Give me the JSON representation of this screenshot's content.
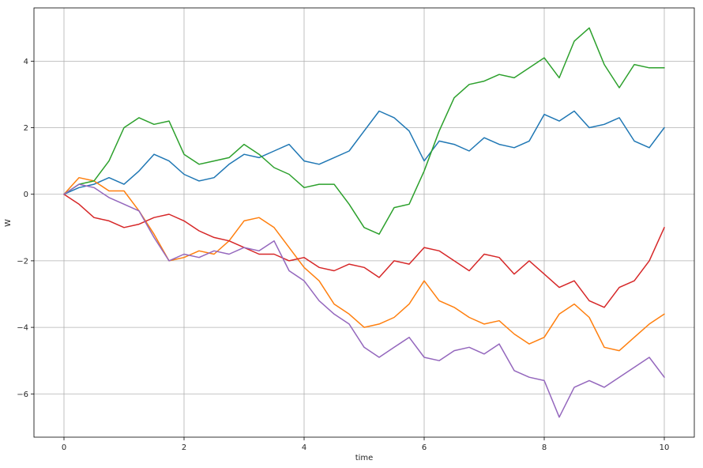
{
  "chart_data": {
    "type": "line",
    "title": "",
    "xlabel": "time",
    "ylabel": "W",
    "xlim": [
      -0.5,
      10.5
    ],
    "ylim": [
      -7.3,
      5.6
    ],
    "xticks": [
      0,
      2,
      4,
      6,
      8,
      10
    ],
    "yticks": [
      -6,
      -4,
      -2,
      0,
      2,
      4
    ],
    "grid": true,
    "series": [
      {
        "color": "#1f77b4",
        "x": [
          0,
          0.25,
          0.5,
          0.75,
          1.0,
          1.25,
          1.5,
          1.75,
          2.0,
          2.25,
          2.5,
          2.75,
          3.0,
          3.25,
          3.5,
          3.75,
          4.0,
          4.25,
          4.5,
          4.75,
          5.0,
          5.25,
          5.5,
          5.75,
          6.0,
          6.25,
          6.5,
          6.75,
          7.0,
          7.25,
          7.5,
          7.75,
          8.0,
          8.25,
          8.5,
          8.75,
          9.0,
          9.25,
          9.5,
          9.75,
          10.0
        ],
        "y": [
          0.0,
          0.2,
          0.3,
          0.5,
          0.3,
          0.7,
          1.2,
          1.0,
          0.6,
          0.4,
          0.5,
          0.9,
          1.2,
          1.1,
          1.3,
          1.5,
          1.0,
          0.9,
          1.1,
          1.3,
          1.9,
          2.5,
          2.3,
          1.9,
          1.0,
          1.6,
          1.5,
          1.3,
          1.7,
          1.5,
          1.4,
          1.6,
          2.4,
          2.2,
          2.5,
          2.0,
          2.1,
          2.3,
          1.6,
          1.4,
          2.0
        ]
      },
      {
        "color": "#ff7f0e",
        "x": [
          0,
          0.25,
          0.5,
          0.75,
          1.0,
          1.25,
          1.5,
          1.75,
          2.0,
          2.25,
          2.5,
          2.75,
          3.0,
          3.25,
          3.5,
          3.75,
          4.0,
          4.25,
          4.5,
          4.75,
          5.0,
          5.25,
          5.5,
          5.75,
          6.0,
          6.25,
          6.5,
          6.75,
          7.0,
          7.25,
          7.5,
          7.75,
          8.0,
          8.25,
          8.5,
          8.75,
          9.0,
          9.25,
          9.5,
          9.75,
          10.0
        ],
        "y": [
          0.0,
          0.5,
          0.4,
          0.1,
          0.1,
          -0.5,
          -1.2,
          -2.0,
          -1.9,
          -1.7,
          -1.8,
          -1.4,
          -0.8,
          -0.7,
          -1.0,
          -1.6,
          -2.2,
          -2.6,
          -3.3,
          -3.6,
          -4.0,
          -3.9,
          -3.7,
          -3.3,
          -2.6,
          -3.2,
          -3.4,
          -3.7,
          -3.9,
          -3.8,
          -4.2,
          -4.5,
          -4.3,
          -3.6,
          -3.3,
          -3.7,
          -4.6,
          -4.7,
          -4.3,
          -3.9,
          -3.6
        ]
      },
      {
        "color": "#2ca02c",
        "x": [
          0,
          0.25,
          0.5,
          0.75,
          1.0,
          1.25,
          1.5,
          1.75,
          2.0,
          2.25,
          2.5,
          2.75,
          3.0,
          3.25,
          3.5,
          3.75,
          4.0,
          4.25,
          4.5,
          4.75,
          5.0,
          5.25,
          5.5,
          5.75,
          6.0,
          6.25,
          6.5,
          6.75,
          7.0,
          7.25,
          7.5,
          7.75,
          8.0,
          8.25,
          8.5,
          8.75,
          9.0,
          9.25,
          9.5,
          9.75,
          10.0
        ],
        "y": [
          0.0,
          0.3,
          0.4,
          1.0,
          2.0,
          2.3,
          2.1,
          2.2,
          1.2,
          0.9,
          1.0,
          1.1,
          1.5,
          1.2,
          0.8,
          0.6,
          0.2,
          0.3,
          0.3,
          -0.3,
          -1.0,
          -1.2,
          -0.4,
          -0.3,
          0.7,
          1.9,
          2.9,
          3.3,
          3.4,
          3.6,
          3.5,
          3.8,
          4.1,
          3.5,
          4.6,
          5.0,
          3.9,
          3.2,
          3.9,
          3.8,
          3.8
        ]
      },
      {
        "color": "#d62728",
        "x": [
          0,
          0.25,
          0.5,
          0.75,
          1.0,
          1.25,
          1.5,
          1.75,
          2.0,
          2.25,
          2.5,
          2.75,
          3.0,
          3.25,
          3.5,
          3.75,
          4.0,
          4.25,
          4.5,
          4.75,
          5.0,
          5.25,
          5.5,
          5.75,
          6.0,
          6.25,
          6.5,
          6.75,
          7.0,
          7.25,
          7.5,
          7.75,
          8.0,
          8.25,
          8.5,
          8.75,
          9.0,
          9.25,
          9.5,
          9.75,
          10.0
        ],
        "y": [
          0.0,
          -0.3,
          -0.7,
          -0.8,
          -1.0,
          -0.9,
          -0.7,
          -0.6,
          -0.8,
          -1.1,
          -1.3,
          -1.4,
          -1.6,
          -1.8,
          -1.8,
          -2.0,
          -1.9,
          -2.2,
          -2.3,
          -2.1,
          -2.2,
          -2.5,
          -2.0,
          -2.1,
          -1.6,
          -1.7,
          -2.0,
          -2.3,
          -1.8,
          -1.9,
          -2.4,
          -2.0,
          -2.4,
          -2.8,
          -2.6,
          -3.2,
          -3.4,
          -2.8,
          -2.6,
          -2.0,
          -1.0
        ]
      },
      {
        "color": "#9467bd",
        "x": [
          0,
          0.25,
          0.5,
          0.75,
          1.0,
          1.25,
          1.5,
          1.75,
          2.0,
          2.25,
          2.5,
          2.75,
          3.0,
          3.25,
          3.5,
          3.75,
          4.0,
          4.25,
          4.5,
          4.75,
          5.0,
          5.25,
          5.5,
          5.75,
          6.0,
          6.25,
          6.5,
          6.75,
          7.0,
          7.25,
          7.5,
          7.75,
          8.0,
          8.25,
          8.5,
          8.75,
          9.0,
          9.25,
          9.5,
          9.75,
          10.0
        ],
        "y": [
          0.0,
          0.3,
          0.2,
          -0.1,
          -0.3,
          -0.5,
          -1.3,
          -2.0,
          -1.8,
          -1.9,
          -1.7,
          -1.8,
          -1.6,
          -1.7,
          -1.4,
          -2.3,
          -2.6,
          -3.2,
          -3.6,
          -3.9,
          -4.6,
          -4.9,
          -4.6,
          -4.3,
          -4.9,
          -5.0,
          -4.7,
          -4.6,
          -4.8,
          -4.5,
          -5.3,
          -5.5,
          -5.6,
          -6.7,
          -5.8,
          -5.6,
          -5.8,
          -5.5,
          -5.2,
          -4.9,
          -5.5
        ]
      }
    ]
  }
}
